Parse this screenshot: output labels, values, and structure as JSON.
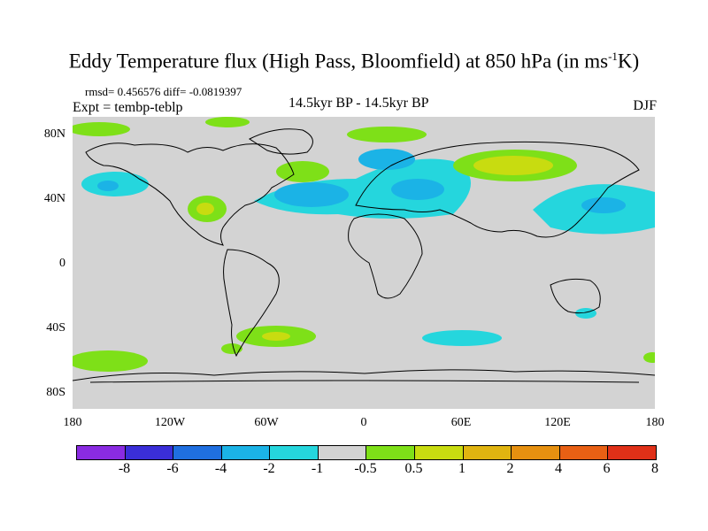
{
  "title": {
    "main": "Eddy Temperature flux (High Pass, Bloomfield) at 850 hPa (in ms",
    "sup": "-1",
    "end": "K)"
  },
  "stats": "rmsd= 0.456576 diff= -0.0819397",
  "expt": "Expt = tembp-teblp",
  "center_label": "14.5kyr BP - 14.5kyr BP",
  "season": "DJF",
  "y_ticks": [
    "80N",
    "40N",
    "0",
    "40S",
    "80S"
  ],
  "x_ticks": [
    "180",
    "120W",
    "60W",
    "0",
    "60E",
    "120E",
    "180"
  ],
  "colorbar": {
    "colors": [
      "#8a2be2",
      "#3a2ed8",
      "#1f6fe0",
      "#1bb3e6",
      "#25d6dd",
      "#d3d3d3",
      "#7ee018",
      "#c8dc10",
      "#e0b410",
      "#e69010",
      "#e86014",
      "#e03018"
    ],
    "labels": [
      "-8",
      "-6",
      "-4",
      "-2",
      "-1",
      "-0.5",
      "0.5",
      "1",
      "2",
      "4",
      "6",
      "8"
    ]
  },
  "map": {
    "background": "#d3d3d3",
    "lon_range": [
      -180,
      180
    ],
    "lat_range": [
      -90,
      90
    ]
  }
}
